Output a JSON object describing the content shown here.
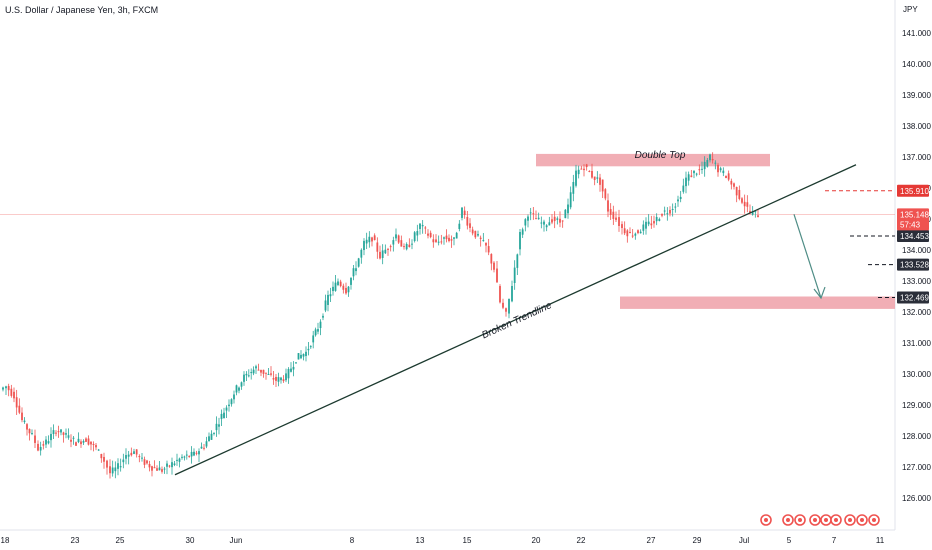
{
  "title": "U.S. Dollar / Japanese Yen, 3h, FXCM",
  "colors": {
    "up": "#26a69a",
    "down": "#ef5350",
    "zone": "#eea0a8",
    "trendline": "#1c3a2f",
    "arrow": "#4f8d86",
    "dashed_red": "#e53935",
    "dashed_dark": "#131722"
  },
  "chart_data": {
    "type": "candlestick",
    "y_axis": {
      "label": "JPY",
      "ylim": [
        125.4,
        141.8
      ],
      "ticks": [
        "126.000",
        "127.000",
        "128.000",
        "129.000",
        "130.000",
        "131.000",
        "132.000",
        "133.000",
        "134.000",
        "135.000",
        "136.000",
        "137.000",
        "138.000",
        "139.000",
        "140.000",
        "141.000"
      ]
    },
    "x_axis": {
      "ticks": [
        "18",
        "23",
        "25",
        "30",
        "Jun",
        "8",
        "13",
        "15",
        "20",
        "22",
        "27",
        "29",
        "Jul",
        "5",
        "7",
        "11"
      ]
    },
    "price_path": [
      [
        0,
        129.5
      ],
      [
        6,
        129.6
      ],
      [
        14,
        129.3
      ],
      [
        22,
        128.5
      ],
      [
        32,
        128.0
      ],
      [
        38,
        127.6
      ],
      [
        46,
        127.8
      ],
      [
        56,
        128.2
      ],
      [
        66,
        128.0
      ],
      [
        76,
        127.8
      ],
      [
        86,
        127.9
      ],
      [
        96,
        127.6
      ],
      [
        104,
        127.2
      ],
      [
        110,
        126.8
      ],
      [
        118,
        127.0
      ],
      [
        126,
        127.4
      ],
      [
        134,
        127.5
      ],
      [
        142,
        127.2
      ],
      [
        152,
        127.0
      ],
      [
        162,
        126.9
      ],
      [
        172,
        127.1
      ],
      [
        182,
        127.3
      ],
      [
        194,
        127.4
      ],
      [
        204,
        127.7
      ],
      [
        214,
        128.2
      ],
      [
        224,
        128.8
      ],
      [
        234,
        129.4
      ],
      [
        244,
        129.9
      ],
      [
        256,
        130.2
      ],
      [
        266,
        130.0
      ],
      [
        276,
        129.8
      ],
      [
        286,
        129.9
      ],
      [
        296,
        130.5
      ],
      [
        306,
        130.7
      ],
      [
        318,
        131.5
      ],
      [
        328,
        132.5
      ],
      [
        338,
        133.0
      ],
      [
        346,
        132.7
      ],
      [
        356,
        133.5
      ],
      [
        364,
        134.2
      ],
      [
        372,
        134.4
      ],
      [
        380,
        133.8
      ],
      [
        388,
        134.1
      ],
      [
        396,
        134.5
      ],
      [
        404,
        134.0
      ],
      [
        412,
        134.3
      ],
      [
        420,
        134.8
      ],
      [
        428,
        134.5
      ],
      [
        436,
        134.2
      ],
      [
        444,
        134.4
      ],
      [
        454,
        134.3
      ],
      [
        462,
        135.3
      ],
      [
        470,
        134.7
      ],
      [
        478,
        134.4
      ],
      [
        486,
        134.1
      ],
      [
        494,
        133.4
      ],
      [
        500,
        132.3
      ],
      [
        506,
        131.9
      ],
      [
        512,
        132.9
      ],
      [
        520,
        134.5
      ],
      [
        528,
        135.2
      ],
      [
        536,
        135.0
      ],
      [
        544,
        134.8
      ],
      [
        552,
        135.0
      ],
      [
        560,
        134.9
      ],
      [
        568,
        135.4
      ],
      [
        576,
        136.5
      ],
      [
        584,
        136.7
      ],
      [
        592,
        136.4
      ],
      [
        600,
        136.2
      ],
      [
        608,
        135.3
      ],
      [
        616,
        135.0
      ],
      [
        622,
        134.7
      ],
      [
        630,
        134.5
      ],
      [
        638,
        134.6
      ],
      [
        646,
        134.8
      ],
      [
        654,
        134.9
      ],
      [
        662,
        135.2
      ],
      [
        670,
        135.3
      ],
      [
        678,
        135.6
      ],
      [
        686,
        136.3
      ],
      [
        694,
        136.5
      ],
      [
        702,
        136.6
      ],
      [
        710,
        137.0
      ],
      [
        718,
        136.6
      ],
      [
        726,
        136.4
      ],
      [
        734,
        136.0
      ],
      [
        742,
        135.6
      ],
      [
        750,
        135.2
      ],
      [
        758,
        135.148
      ]
    ],
    "current_price": {
      "value": "135.148",
      "countdown": "57:43"
    },
    "levels": [
      {
        "value": 135.91,
        "label": "135.910",
        "style": "red"
      },
      {
        "value": 134.453,
        "label": "134.453",
        "style": "dark"
      },
      {
        "value": 133.528,
        "label": "133.528",
        "style": "dark"
      },
      {
        "value": 132.469,
        "label": "132.469",
        "style": "dark"
      }
    ],
    "annotations": {
      "double_top": "Double Top",
      "broken_trendline": "Broken Trendline"
    },
    "zones": [
      {
        "name": "double-top-zone",
        "from": 136.7,
        "to": 137.1
      },
      {
        "name": "target-zone",
        "from": 132.1,
        "to": 132.5
      }
    ],
    "trendline": {
      "start": 126.75,
      "end": 136.75
    },
    "arrow": {
      "from": 135.15,
      "to": 132.45
    }
  }
}
